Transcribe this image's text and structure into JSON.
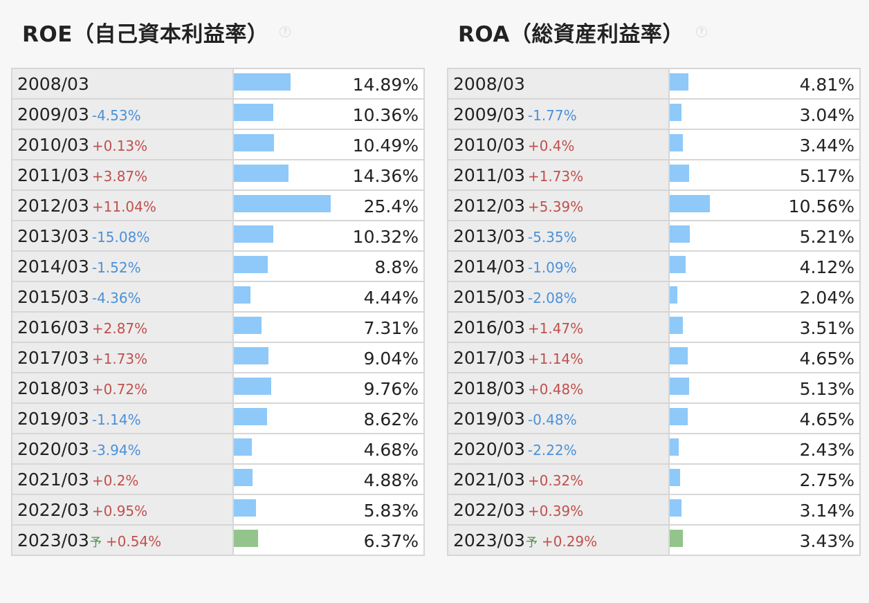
{
  "chart_data": [
    {
      "type": "bar",
      "title": "ROE（自己資本利益率）",
      "scale_max": 25.4,
      "rows": [
        {
          "year": "2008/03",
          "diff": "",
          "forecast": false,
          "value": 14.89,
          "label": "14.89%"
        },
        {
          "year": "2009/03",
          "diff": "-4.53%",
          "forecast": false,
          "value": 10.36,
          "label": "10.36%"
        },
        {
          "year": "2010/03",
          "diff": "+0.13%",
          "forecast": false,
          "value": 10.49,
          "label": "10.49%"
        },
        {
          "year": "2011/03",
          "diff": "+3.87%",
          "forecast": false,
          "value": 14.36,
          "label": "14.36%"
        },
        {
          "year": "2012/03",
          "diff": "+11.04%",
          "forecast": false,
          "value": 25.4,
          "label": "25.4%"
        },
        {
          "year": "2013/03",
          "diff": "-15.08%",
          "forecast": false,
          "value": 10.32,
          "label": "10.32%"
        },
        {
          "year": "2014/03",
          "diff": "-1.52%",
          "forecast": false,
          "value": 8.8,
          "label": "8.8%"
        },
        {
          "year": "2015/03",
          "diff": "-4.36%",
          "forecast": false,
          "value": 4.44,
          "label": "4.44%"
        },
        {
          "year": "2016/03",
          "diff": "+2.87%",
          "forecast": false,
          "value": 7.31,
          "label": "7.31%"
        },
        {
          "year": "2017/03",
          "diff": "+1.73%",
          "forecast": false,
          "value": 9.04,
          "label": "9.04%"
        },
        {
          "year": "2018/03",
          "diff": "+0.72%",
          "forecast": false,
          "value": 9.76,
          "label": "9.76%"
        },
        {
          "year": "2019/03",
          "diff": "-1.14%",
          "forecast": false,
          "value": 8.62,
          "label": "8.62%"
        },
        {
          "year": "2020/03",
          "diff": "-3.94%",
          "forecast": false,
          "value": 4.68,
          "label": "4.68%"
        },
        {
          "year": "2021/03",
          "diff": "+0.2%",
          "forecast": false,
          "value": 4.88,
          "label": "4.88%"
        },
        {
          "year": "2022/03",
          "diff": "+0.95%",
          "forecast": false,
          "value": 5.83,
          "label": "5.83%"
        },
        {
          "year": "2023/03",
          "diff": "+0.54%",
          "forecast": true,
          "value": 6.37,
          "label": "6.37%"
        }
      ]
    },
    {
      "type": "bar",
      "title": "ROA（総資産利益率）",
      "scale_max": 25.4,
      "rows": [
        {
          "year": "2008/03",
          "diff": "",
          "forecast": false,
          "value": 4.81,
          "label": "4.81%"
        },
        {
          "year": "2009/03",
          "diff": "-1.77%",
          "forecast": false,
          "value": 3.04,
          "label": "3.04%"
        },
        {
          "year": "2010/03",
          "diff": "+0.4%",
          "forecast": false,
          "value": 3.44,
          "label": "3.44%"
        },
        {
          "year": "2011/03",
          "diff": "+1.73%",
          "forecast": false,
          "value": 5.17,
          "label": "5.17%"
        },
        {
          "year": "2012/03",
          "diff": "+5.39%",
          "forecast": false,
          "value": 10.56,
          "label": "10.56%"
        },
        {
          "year": "2013/03",
          "diff": "-5.35%",
          "forecast": false,
          "value": 5.21,
          "label": "5.21%"
        },
        {
          "year": "2014/03",
          "diff": "-1.09%",
          "forecast": false,
          "value": 4.12,
          "label": "4.12%"
        },
        {
          "year": "2015/03",
          "diff": "-2.08%",
          "forecast": false,
          "value": 2.04,
          "label": "2.04%"
        },
        {
          "year": "2016/03",
          "diff": "+1.47%",
          "forecast": false,
          "value": 3.51,
          "label": "3.51%"
        },
        {
          "year": "2017/03",
          "diff": "+1.14%",
          "forecast": false,
          "value": 4.65,
          "label": "4.65%"
        },
        {
          "year": "2018/03",
          "diff": "+0.48%",
          "forecast": false,
          "value": 5.13,
          "label": "5.13%"
        },
        {
          "year": "2019/03",
          "diff": "-0.48%",
          "forecast": false,
          "value": 4.65,
          "label": "4.65%"
        },
        {
          "year": "2020/03",
          "diff": "-2.22%",
          "forecast": false,
          "value": 2.43,
          "label": "2.43%"
        },
        {
          "year": "2021/03",
          "diff": "+0.32%",
          "forecast": false,
          "value": 2.75,
          "label": "2.75%"
        },
        {
          "year": "2022/03",
          "diff": "+0.39%",
          "forecast": false,
          "value": 3.14,
          "label": "3.14%"
        },
        {
          "year": "2023/03",
          "diff": "+0.29%",
          "forecast": true,
          "value": 3.43,
          "label": "3.43%"
        }
      ]
    }
  ],
  "forecast_marker": "予",
  "help_icon": "question-circle-icon",
  "colors": {
    "bar": "#8ec9f9",
    "bar_forecast": "#93c48b",
    "diff_positive": "#c0504d",
    "diff_negative": "#4a90d9",
    "forecast_marker": "#4a8f4a"
  }
}
